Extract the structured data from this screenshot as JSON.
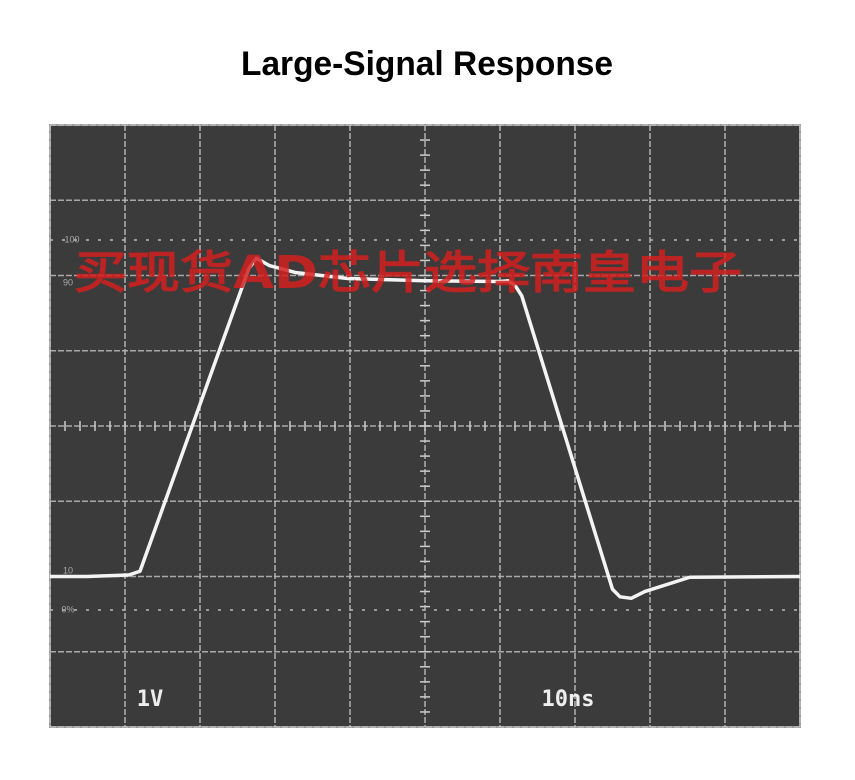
{
  "chart_data": {
    "type": "line",
    "title": "Large-Signal Response",
    "x": [
      0,
      4.9,
      10.5,
      12,
      26.5,
      27.5,
      29.3,
      32.7,
      39.7,
      50,
      60,
      61.1,
      62,
      62.9,
      75,
      76,
      77.5,
      79.3,
      85.3,
      100
    ],
    "series": [
      {
        "color": "#f4f4f4",
        "values": [
          -2,
          -2,
          -1.98,
          -1.93,
          2.09,
          2.23,
          2.13,
          2.04,
          1.96,
          1.93,
          1.92,
          1.93,
          1.87,
          1.73,
          -2.17,
          -2.27,
          -2.29,
          -2.2,
          -2.01,
          -2
        ]
      }
    ],
    "xlim": [
      0,
      100
    ],
    "xticks": [
      0,
      10,
      20,
      30,
      40,
      50,
      60,
      70,
      80,
      90,
      100
    ],
    "ylim": [
      -4,
      4
    ],
    "yticks": [
      -4,
      -3,
      -2,
      -1,
      0,
      1,
      2,
      3,
      4
    ],
    "grid": true,
    "annotations": [
      "1V",
      "10ns",
      "100",
      "90",
      "10",
      "0%",
      "买现货AD芯片选择南皇电子"
    ]
  }
}
